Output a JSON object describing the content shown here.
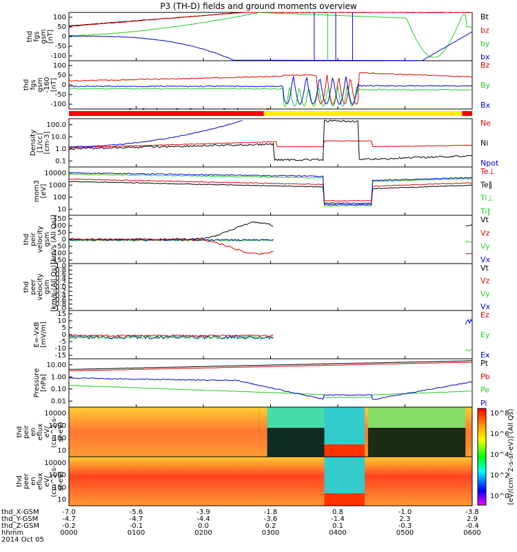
{
  "title": "P3 (TH-D) fields and ground moments overview",
  "colors": {
    "black": "#000000",
    "red": "#e00000",
    "green": "#22cc22",
    "blue": "#0000d0",
    "yellow": "#ffee00"
  },
  "panels": [
    {
      "id": "fgs",
      "ylabel": [
        "thd",
        "fgs",
        "gsm",
        "[nT]"
      ],
      "ticks": [
        "100",
        "50",
        "0",
        "-50",
        "-100"
      ],
      "legend": [
        {
          "t": "Bt",
          "c": "black"
        },
        {
          "t": "bz",
          "c": "red"
        },
        {
          "t": "by",
          "c": "green"
        },
        {
          "t": "bx",
          "c": "blue"
        }
      ]
    },
    {
      "id": "fgs2",
      "ylabel": [
        "thd",
        "fgs",
        "gsm",
        "-160",
        "[nT]"
      ],
      "ticks": [
        "100",
        "50",
        "0",
        "-50",
        "-100"
      ],
      "legend": [
        {
          "t": "Bz",
          "c": "red"
        },
        {
          "t": "By",
          "c": "green"
        },
        {
          "t": "Bx",
          "c": "blue"
        }
      ]
    },
    {
      "id": "dens",
      "ylabel": [
        "Density",
        "[1/cc]",
        "[cm-3]"
      ],
      "ticks": [
        "100.0",
        "10.0",
        "1.0",
        "0.1"
      ],
      "legend": [
        {
          "t": "Ne",
          "c": "red"
        },
        {
          "t": "Ni",
          "c": "black"
        },
        {
          "t": "Npot",
          "c": "blue"
        }
      ]
    },
    {
      "id": "temp",
      "ylabel": [
        "mom3",
        "[eV]"
      ],
      "ticks": [
        "10000",
        "1000",
        "100",
        "10"
      ],
      "legend": [
        {
          "t": "Te⊥",
          "c": "red"
        },
        {
          "t": "Te∥",
          "c": "black"
        },
        {
          "t": "Ti⊥",
          "c": "green"
        },
        {
          "t": "Ti∥",
          "c": "green"
        }
      ]
    },
    {
      "id": "vi",
      "ylabel": [
        "thd",
        "peir",
        "velocity",
        "gsm",
        "[km/s (All Qs)]"
      ],
      "ticks": [
        "150",
        "100",
        "50",
        "0",
        "-50",
        "-100",
        "-150"
      ],
      "legend": [
        {
          "t": "Vt",
          "c": "black"
        },
        {
          "t": "Vz",
          "c": "red"
        },
        {
          "t": "Vy",
          "c": "green"
        },
        {
          "t": "Vx",
          "c": "blue"
        }
      ]
    },
    {
      "id": "ve",
      "ylabel": [
        "thd",
        "peer",
        "velocity",
        "gsm",
        "[km/s (All Qs)]"
      ],
      "ticks": [
        "1.0",
        "0.8",
        "0.6",
        "0.4",
        "0.2",
        "0.0",
        "-0.2",
        "-0.4",
        "-0.6",
        "-0.8",
        "-1.0"
      ],
      "legend": [
        {
          "t": "Vt",
          "c": "black"
        },
        {
          "t": "Vz",
          "c": "red"
        },
        {
          "t": "Vy",
          "c": "green"
        },
        {
          "t": "Vx",
          "c": "blue"
        }
      ]
    },
    {
      "id": "ef",
      "ylabel": [
        "E=-VxB",
        "[mV/m]"
      ],
      "ticks": [
        "15",
        "10",
        "5",
        "0",
        "-5",
        "-10",
        "-15"
      ],
      "legend": [
        {
          "t": "Ez",
          "c": "red"
        },
        {
          "t": "Ey",
          "c": "green"
        },
        {
          "t": "Ex",
          "c": "blue"
        }
      ]
    },
    {
      "id": "pres",
      "ylabel": [
        "Pressure",
        "[nPa]"
      ],
      "ticks": [
        "10.00",
        "1.00",
        "0.10",
        "0.01"
      ],
      "legend": [
        {
          "t": "Pt",
          "c": "black"
        },
        {
          "t": "Pb",
          "c": "red"
        },
        {
          "t": "Pe",
          "c": "green"
        },
        {
          "t": "Pi",
          "c": "blue"
        }
      ]
    },
    {
      "id": "spi",
      "ylabel": [
        "thd",
        "peir",
        "en",
        "eflux",
        "eV/",
        "(cm^2-s-",
        "sr-eV)"
      ],
      "ticks": [
        "10000",
        "1000",
        "100",
        "10"
      ],
      "legend": []
    },
    {
      "id": "spe",
      "ylabel": [
        "thd",
        "peer",
        "en",
        "eflux",
        "eV/",
        "(cm^2-s-",
        "sr-eV)"
      ],
      "ticks": [
        "10000",
        "1000",
        "100",
        "10"
      ],
      "legend": []
    }
  ],
  "colorbar": {
    "label": "[eV/(cm^2-s-sr-eV)] (All Qs)",
    "ticks": [
      "10^8",
      "10^6",
      "10^4",
      "10^2",
      "10^0"
    ]
  },
  "footer": {
    "rows": [
      {
        "label": "thd_X-GSM",
        "values": [
          "-7.0",
          "-5.6",
          "-3.9",
          "-1.8",
          "0.8",
          "-1.0",
          "-3.8"
        ]
      },
      {
        "label": "thd_Y-GSM",
        "values": [
          "-4.7",
          "-4.7",
          "-4.4",
          "-3.6",
          "-1.4",
          "2.3",
          "2.9"
        ]
      },
      {
        "label": "thd_Z-GSM",
        "values": [
          "-0.2",
          "-0.1",
          "0.0",
          "0.2",
          "0.1",
          "-0.3",
          "-0.4"
        ]
      },
      {
        "label": "hhmm",
        "values": [
          "0000",
          "0100",
          "0200",
          "0300",
          "0400",
          "0500",
          "0600"
        ]
      }
    ],
    "date": "2014 Oct 05"
  },
  "chart_data": {
    "type": "line",
    "title": "P3 (TH-D) fields and ground moments overview",
    "x": [
      "0000",
      "0100",
      "0200",
      "0300",
      "0400",
      "0500",
      "0600"
    ],
    "xlabel": "hhmm",
    "series": [
      {
        "name": "Bt",
        "panel": "fgs",
        "values": [
          40,
          60,
          85,
          100,
          100,
          100,
          100
        ]
      },
      {
        "name": "bz",
        "panel": "fgs",
        "values": [
          40,
          58,
          82,
          100,
          100,
          100,
          100
        ]
      },
      {
        "name": "by",
        "panel": "fgs",
        "values": [
          3,
          15,
          38,
          70,
          100,
          -90,
          60
        ]
      },
      {
        "name": "bx",
        "panel": "fgs",
        "values": [
          2,
          -5,
          -30,
          -100,
          -100,
          -100,
          0
        ]
      },
      {
        "name": "Ne",
        "panel": "dens",
        "values": [
          1.1,
          1.6,
          2.4,
          0.7,
          3.5,
          0.6,
          0.6
        ]
      },
      {
        "name": "Ni",
        "panel": "dens",
        "values": [
          0.9,
          1.2,
          1.5,
          0.2,
          200,
          0.2,
          0.4
        ]
      },
      {
        "name": "Npot",
        "panel": "dens",
        "values": [
          1.3,
          1.8,
          8,
          200,
          200,
          200,
          0.5
        ]
      },
      {
        "name": "Pt",
        "panel": "pres",
        "values": [
          3,
          5,
          8,
          15,
          15,
          15,
          15
        ]
      },
      {
        "name": "Pb",
        "panel": "pres",
        "values": [
          3,
          4.5,
          7,
          12,
          12,
          12,
          12
        ]
      },
      {
        "name": "Pe",
        "panel": "pres",
        "values": [
          0.25,
          0.18,
          0.12,
          0.05,
          0.02,
          0.02,
          0.07
        ]
      },
      {
        "name": "Pi",
        "panel": "pres",
        "values": [
          0.8,
          0.7,
          0.5,
          0.15,
          0.02,
          0.04,
          0.4
        ]
      }
    ]
  }
}
